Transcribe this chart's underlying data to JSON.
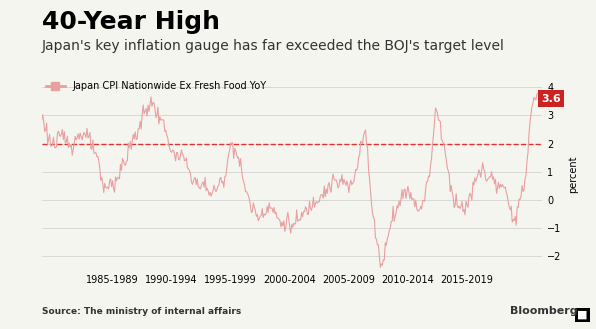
{
  "title": "40-Year High",
  "subtitle": "Japan's key inflation gauge has far exceeded the BOJ's target level",
  "legend_label": "Japan CPI Nationwide Ex Fresh Food YoY",
  "ylabel": "percent",
  "source": "Source: The ministry of internal affairs",
  "bloomberg": "Bloomberg",
  "line_color": "#e8a0a0",
  "dashed_line_color": "#e03030",
  "target_level": 2.0,
  "last_value": 3.6,
  "annotation_color": "#cc2222",
  "annotation_text": "3.6",
  "ylim": [
    -2.5,
    4.3
  ],
  "yticks": [
    -2.0,
    -1.0,
    0.0,
    1.0,
    2.0,
    3.0,
    4.0
  ],
  "background_color": "#f5f5f0",
  "grid_color": "#cccccc",
  "title_fontsize": 18,
  "subtitle_fontsize": 10,
  "tick_label_fontsize": 8,
  "x_tick_labels": [
    "1985-1989",
    "1990-1994",
    "1995-1999",
    "2000-2004",
    "2005-2009",
    "2010-2014",
    "2015-2019"
  ],
  "x_tick_positions": [
    1987,
    1992,
    1997,
    2002,
    2007,
    2012,
    2017
  ]
}
